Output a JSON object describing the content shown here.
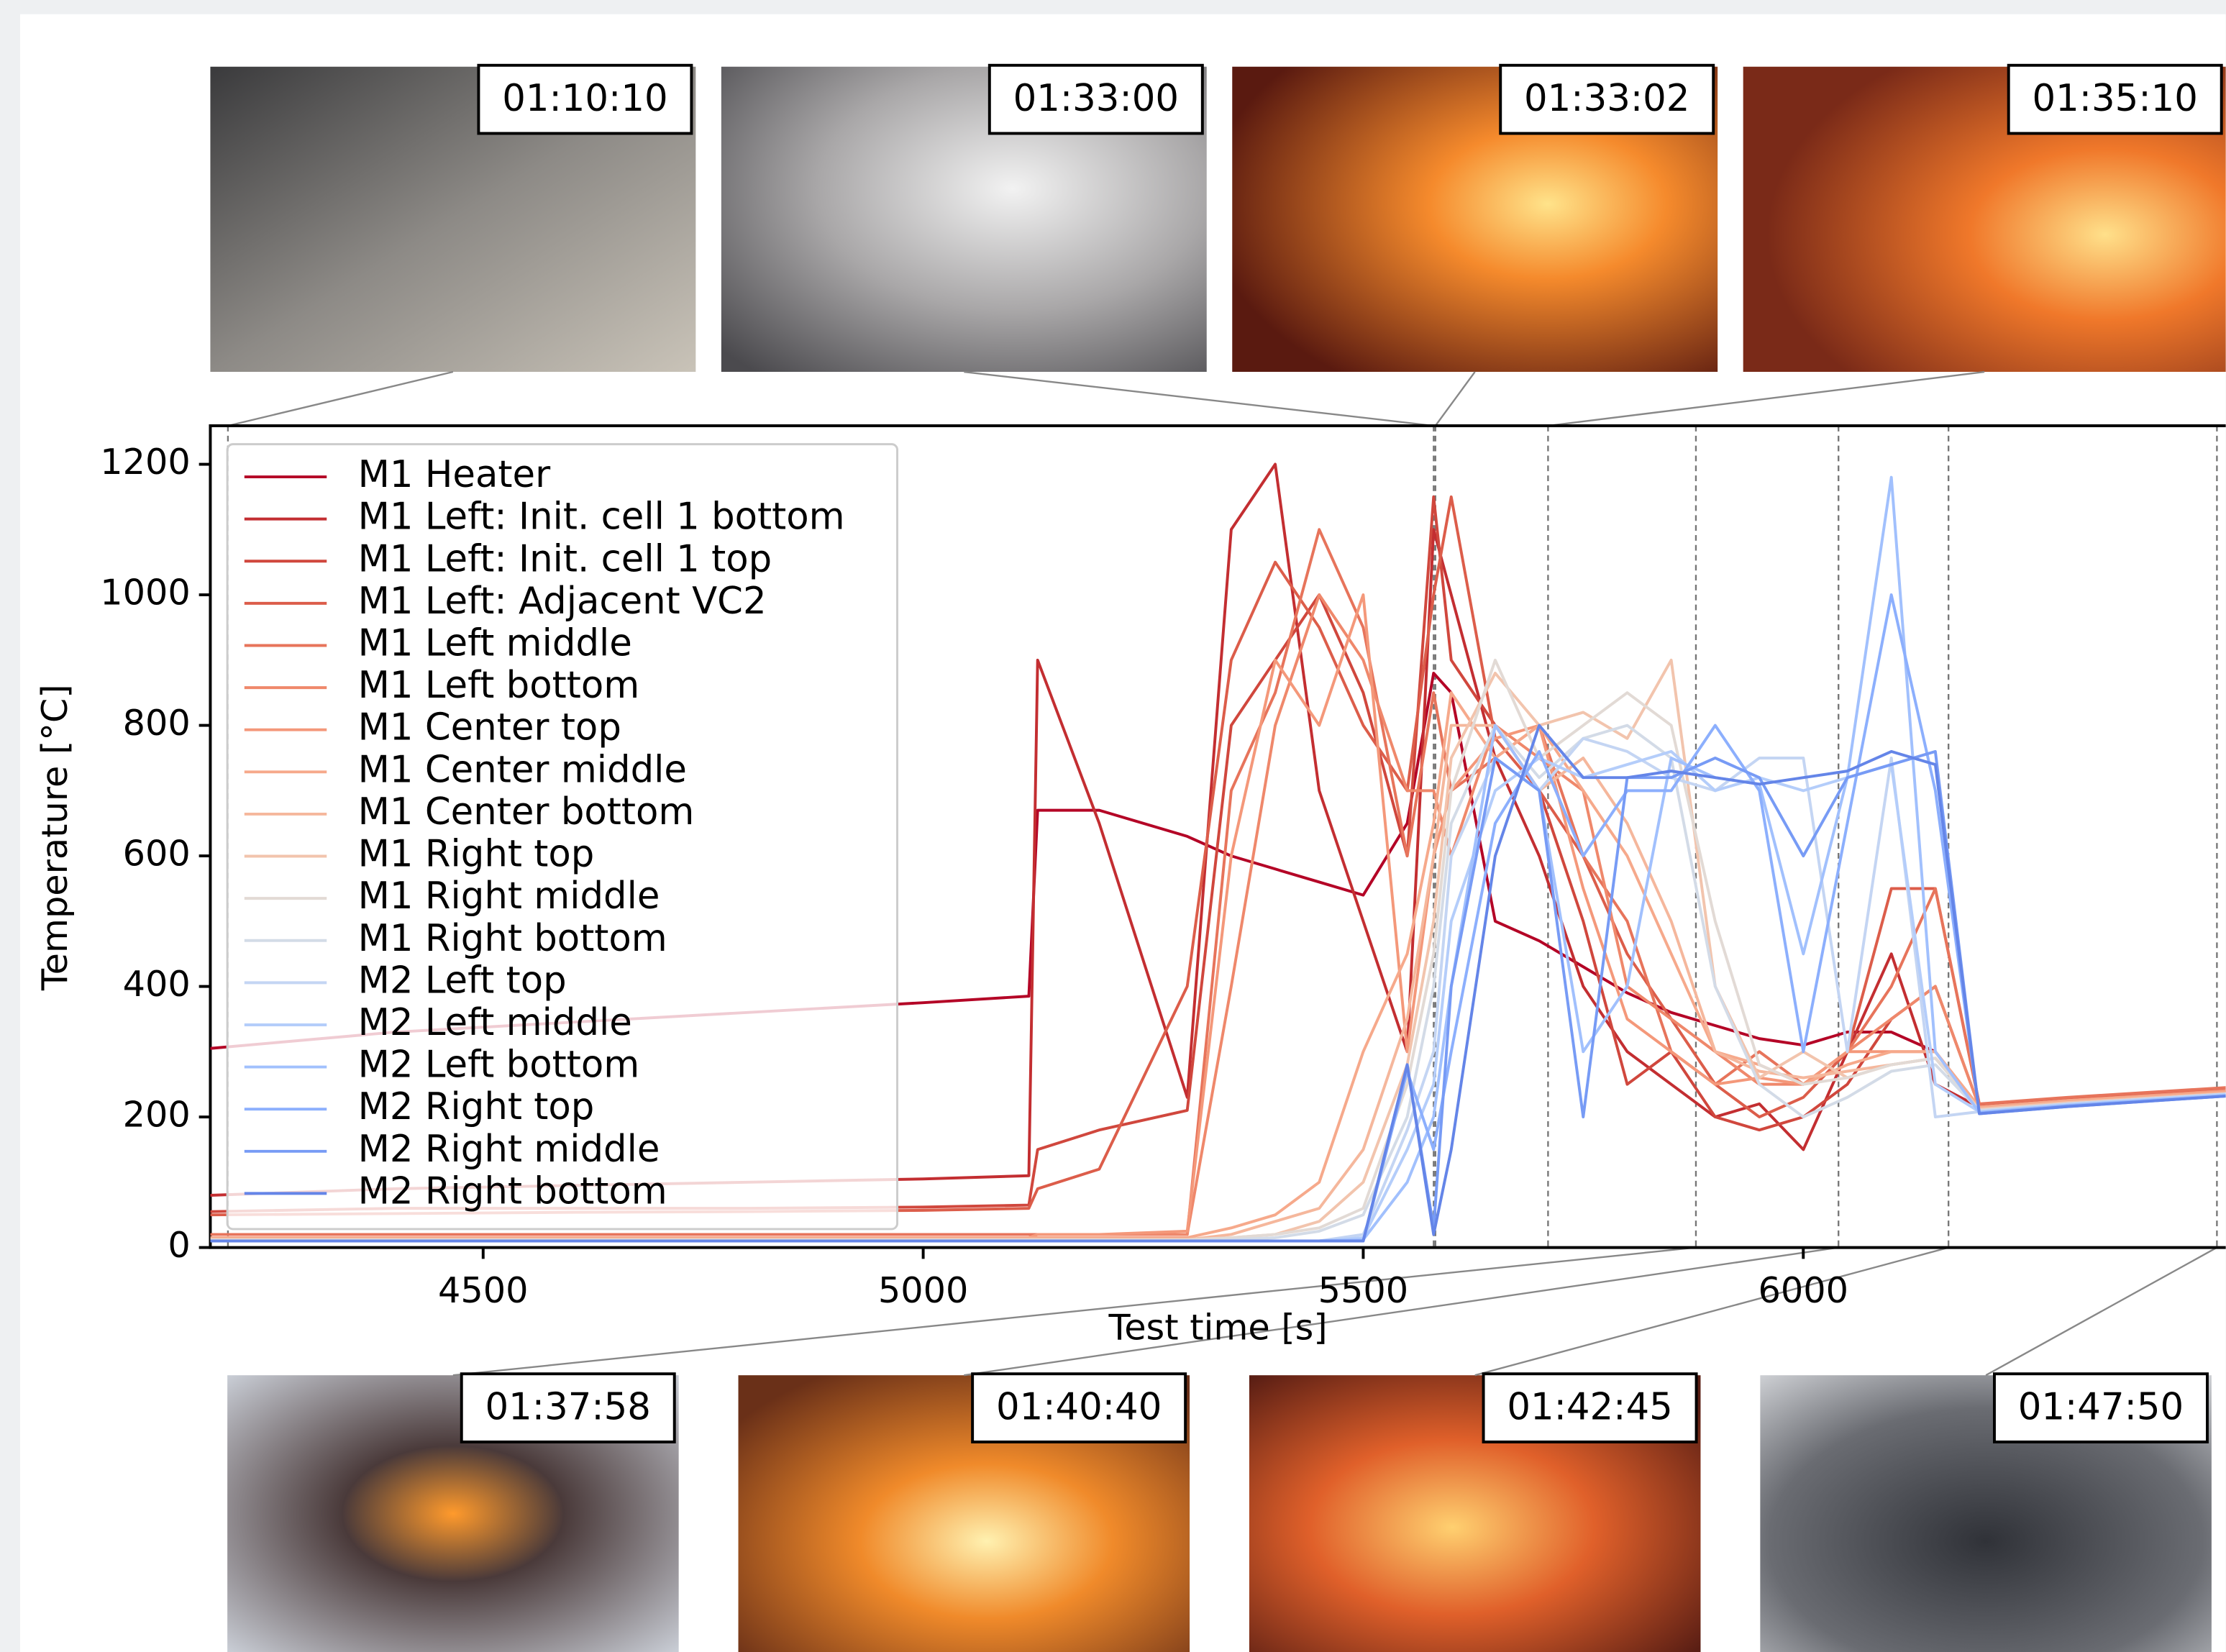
{
  "chart_data": {
    "type": "line",
    "xlabel": "Test time [s]",
    "ylabel": "Temperature [°C]",
    "xlim": [
      4190,
      6480
    ],
    "ylim": [
      0,
      1259
    ],
    "xticks": [
      4500,
      5000,
      5500,
      6000
    ],
    "yticks": [
      0,
      200,
      400,
      600,
      800,
      1000,
      1200
    ],
    "grid": false,
    "legend": "upper left",
    "events": [
      {
        "time": "01:10:10"
      },
      {
        "time": "01:33:00"
      },
      {
        "time": "01:33:02"
      },
      {
        "time": "01:35:10"
      },
      {
        "time": "01:37:58"
      },
      {
        "time": "01:40:40"
      },
      {
        "time": "01:42:45"
      },
      {
        "time": "01:47:50"
      }
    ],
    "x": [
      4190,
      4400,
      4600,
      4800,
      5000,
      5120,
      5130,
      5200,
      5300,
      5350,
      5400,
      5450,
      5500,
      5550,
      5580,
      5600,
      5650,
      5700,
      5750,
      5800,
      5850,
      5900,
      5950,
      6000,
      6050,
      6100,
      6150,
      6200,
      6300,
      6480
    ],
    "series": [
      {
        "name": "M1 Heater",
        "color": "#b40426",
        "values": [
          305,
          330,
          345,
          360,
          375,
          385,
          670,
          670,
          630,
          600,
          580,
          560,
          540,
          650,
          880,
          850,
          500,
          470,
          430,
          390,
          360,
          340,
          320,
          310,
          330,
          330,
          300,
          210,
          220,
          240
        ]
      },
      {
        "name": "M1 Left: Init. cell 1 bottom",
        "color": "#c32e31",
        "values": [
          80,
          90,
          95,
          100,
          105,
          110,
          900,
          650,
          230,
          1100,
          1200,
          700,
          500,
          300,
          1100,
          1000,
          750,
          600,
          400,
          300,
          250,
          200,
          220,
          150,
          300,
          450,
          250,
          215,
          225,
          240
        ]
      },
      {
        "name": "M1 Left: Init. cell 1 top",
        "color": "#d0473d",
        "values": [
          55,
          60,
          60,
          60,
          62,
          65,
          150,
          180,
          210,
          800,
          900,
          1000,
          850,
          600,
          1150,
          900,
          800,
          700,
          500,
          250,
          300,
          200,
          180,
          200,
          250,
          350,
          400,
          215,
          225,
          240
        ]
      },
      {
        "name": "M1 Left: Adjacent VC2",
        "color": "#dc5d4a",
        "values": [
          50,
          52,
          54,
          55,
          57,
          60,
          90,
          120,
          400,
          900,
          1050,
          950,
          800,
          700,
          1000,
          1150,
          780,
          700,
          600,
          450,
          350,
          250,
          200,
          230,
          300,
          550,
          550,
          218,
          228,
          242
        ]
      },
      {
        "name": "M1 Left middle",
        "color": "#e7745b",
        "values": [
          20,
          20,
          20,
          20,
          20,
          20,
          20,
          20,
          20,
          700,
          850,
          1100,
          950,
          600,
          850,
          700,
          750,
          800,
          600,
          500,
          300,
          250,
          300,
          250,
          300,
          400,
          550,
          220,
          230,
          245
        ]
      },
      {
        "name": "M1 Left bottom",
        "color": "#ef886b",
        "values": [
          15,
          15,
          15,
          15,
          15,
          15,
          20,
          20,
          20,
          400,
          800,
          1000,
          900,
          700,
          700,
          600,
          800,
          750,
          700,
          400,
          350,
          300,
          250,
          250,
          300,
          350,
          400,
          215,
          225,
          240
        ]
      },
      {
        "name": "M1 Center top",
        "color": "#f4987a",
        "values": [
          15,
          15,
          15,
          15,
          15,
          15,
          20,
          20,
          25,
          600,
          900,
          800,
          1000,
          300,
          600,
          700,
          780,
          800,
          550,
          350,
          300,
          250,
          260,
          250,
          300,
          300,
          300,
          215,
          225,
          240
        ]
      },
      {
        "name": "M1 Center middle",
        "color": "#f6a98b",
        "values": [
          15,
          15,
          15,
          15,
          15,
          15,
          15,
          15,
          15,
          30,
          50,
          100,
          300,
          450,
          650,
          850,
          750,
          800,
          700,
          600,
          450,
          300,
          280,
          250,
          280,
          300,
          300,
          215,
          225,
          238
        ]
      },
      {
        "name": "M1 Center bottom",
        "color": "#f5b79c",
        "values": [
          12,
          12,
          12,
          12,
          12,
          12,
          12,
          12,
          12,
          20,
          40,
          60,
          150,
          350,
          600,
          800,
          800,
          700,
          750,
          650,
          500,
          300,
          270,
          260,
          270,
          280,
          290,
          212,
          222,
          236
        ]
      },
      {
        "name": "M1 Right top",
        "color": "#f2c4ad",
        "values": [
          12,
          12,
          12,
          12,
          12,
          12,
          12,
          12,
          12,
          15,
          20,
          40,
          100,
          280,
          500,
          750,
          880,
          800,
          820,
          780,
          900,
          400,
          260,
          300,
          260,
          280,
          290,
          212,
          222,
          236
        ]
      },
      {
        "name": "M1 Right middle",
        "color": "#e2dad5",
        "values": [
          12,
          12,
          12,
          12,
          12,
          12,
          12,
          12,
          12,
          15,
          20,
          30,
          60,
          250,
          450,
          700,
          900,
          750,
          800,
          850,
          800,
          500,
          280,
          250,
          260,
          280,
          290,
          210,
          220,
          235
        ]
      },
      {
        "name": "M1 Right bottom",
        "color": "#d3dbe7",
        "values": [
          10,
          10,
          10,
          10,
          10,
          10,
          10,
          10,
          10,
          12,
          15,
          25,
          50,
          200,
          400,
          650,
          800,
          720,
          780,
          800,
          750,
          400,
          250,
          200,
          230,
          270,
          280,
          210,
          220,
          235
        ]
      },
      {
        "name": "M2 Left top",
        "color": "#c4d5f3",
        "values": [
          10,
          10,
          10,
          10,
          10,
          10,
          10,
          10,
          10,
          10,
          10,
          10,
          20,
          180,
          300,
          600,
          750,
          700,
          780,
          760,
          720,
          700,
          750,
          750,
          300,
          750,
          200,
          208,
          220,
          235
        ]
      },
      {
        "name": "M2 Left middle",
        "color": "#b4cdfa",
        "values": [
          10,
          10,
          10,
          10,
          10,
          10,
          10,
          10,
          10,
          10,
          10,
          10,
          15,
          150,
          250,
          500,
          700,
          750,
          720,
          740,
          760,
          700,
          720,
          700,
          720,
          740,
          250,
          208,
          218,
          234
        ]
      },
      {
        "name": "M2 Left bottom",
        "color": "#a1c0fd",
        "values": [
          10,
          10,
          10,
          10,
          10,
          10,
          10,
          10,
          10,
          10,
          10,
          10,
          12,
          100,
          200,
          400,
          800,
          700,
          300,
          400,
          750,
          720,
          710,
          450,
          720,
          1180,
          300,
          207,
          218,
          233
        ]
      },
      {
        "name": "M2 Right top",
        "color": "#8caffd",
        "values": [
          10,
          10,
          10,
          10,
          10,
          10,
          10,
          10,
          10,
          10,
          10,
          10,
          10,
          270,
          150,
          300,
          650,
          760,
          600,
          700,
          700,
          800,
          700,
          300,
          650,
          1000,
          700,
          206,
          217,
          232
        ]
      },
      {
        "name": "M2 Right middle",
        "color": "#779bf5",
        "values": [
          10,
          10,
          10,
          10,
          10,
          10,
          10,
          10,
          10,
          10,
          10,
          10,
          10,
          280,
          30,
          400,
          750,
          700,
          200,
          720,
          720,
          750,
          720,
          600,
          720,
          740,
          760,
          205,
          216,
          232
        ]
      },
      {
        "name": "M2 Right bottom",
        "color": "#6485e8",
        "values": [
          10,
          10,
          10,
          10,
          10,
          10,
          10,
          10,
          10,
          10,
          10,
          10,
          10,
          280,
          20,
          150,
          600,
          800,
          720,
          720,
          730,
          720,
          710,
          720,
          730,
          760,
          740,
          205,
          216,
          232
        ]
      }
    ]
  }
}
